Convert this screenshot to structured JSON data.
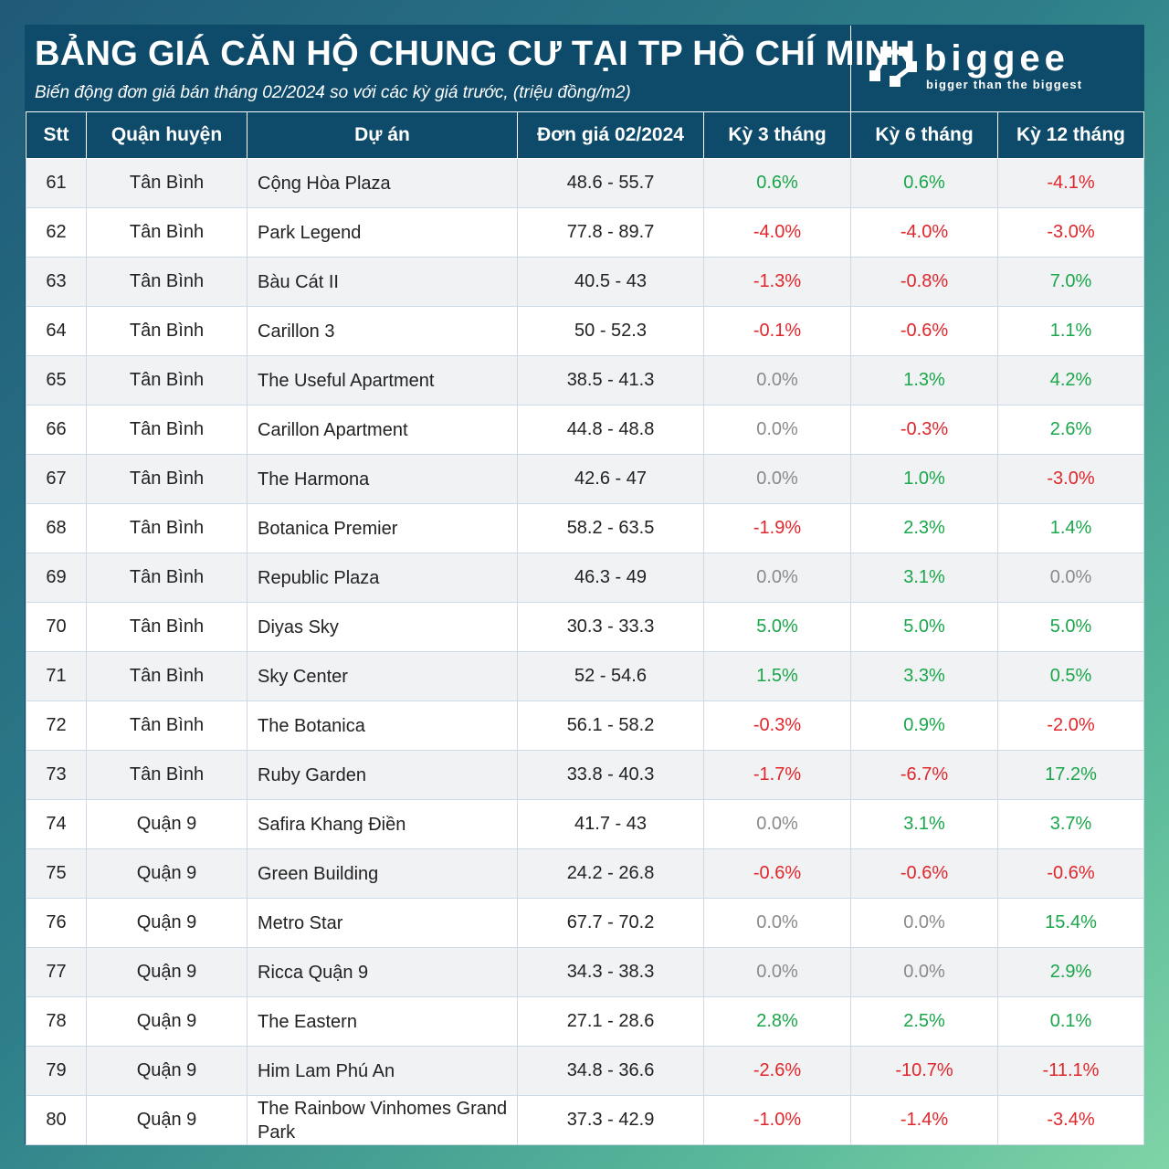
{
  "header": {
    "title": "BẢNG GIÁ CĂN HỘ CHUNG CƯ TẠI TP HỒ CHÍ MINH",
    "subtitle": "Biến động đơn giá bán tháng 02/2024 so với các kỳ giá trước, (triệu đồng/m2)"
  },
  "logo": {
    "word": "biggee",
    "tagline": "bigger than the biggest"
  },
  "colors": {
    "header_bg": "#0e4a6a",
    "positive": "#1aa64a",
    "negative": "#e0262b",
    "zero": "#8a8a8a"
  },
  "table": {
    "columns": [
      "Stt",
      "Quận huyện",
      "Dự án",
      "Đơn giá 02/2024",
      "Kỳ 3 tháng",
      "Kỳ 6 tháng",
      "Kỳ 12 tháng"
    ],
    "rows": [
      {
        "stt": "61",
        "district": "Tân Bình",
        "project": "Cộng Hòa Plaza",
        "price": "48.6 - 55.7",
        "k3": "0.6%",
        "k6": "0.6%",
        "k12": "-4.1%"
      },
      {
        "stt": "62",
        "district": "Tân Bình",
        "project": "Park Legend",
        "price": "77.8 - 89.7",
        "k3": "-4.0%",
        "k6": "-4.0%",
        "k12": "-3.0%"
      },
      {
        "stt": "63",
        "district": "Tân Bình",
        "project": "Bàu Cát II",
        "price": "40.5 - 43",
        "k3": "-1.3%",
        "k6": "-0.8%",
        "k12": "7.0%"
      },
      {
        "stt": "64",
        "district": "Tân Bình",
        "project": "Carillon 3",
        "price": "50 - 52.3",
        "k3": "-0.1%",
        "k6": "-0.6%",
        "k12": "1.1%"
      },
      {
        "stt": "65",
        "district": "Tân Bình",
        "project": "The Useful Apartment",
        "price": "38.5 - 41.3",
        "k3": "0.0%",
        "k6": "1.3%",
        "k12": "4.2%"
      },
      {
        "stt": "66",
        "district": "Tân Bình",
        "project": "Carillon Apartment",
        "price": "44.8 - 48.8",
        "k3": "0.0%",
        "k6": "-0.3%",
        "k12": "2.6%"
      },
      {
        "stt": "67",
        "district": "Tân Bình",
        "project": "The Harmona",
        "price": "42.6 - 47",
        "k3": "0.0%",
        "k6": "1.0%",
        "k12": "-3.0%"
      },
      {
        "stt": "68",
        "district": "Tân Bình",
        "project": "Botanica Premier",
        "price": "58.2 - 63.5",
        "k3": "-1.9%",
        "k6": "2.3%",
        "k12": "1.4%"
      },
      {
        "stt": "69",
        "district": "Tân Bình",
        "project": "Republic Plaza",
        "price": "46.3 - 49",
        "k3": "0.0%",
        "k6": "3.1%",
        "k12": "0.0%"
      },
      {
        "stt": "70",
        "district": "Tân Bình",
        "project": "Diyas Sky",
        "price": "30.3 - 33.3",
        "k3": "5.0%",
        "k6": "5.0%",
        "k12": "5.0%"
      },
      {
        "stt": "71",
        "district": "Tân Bình",
        "project": "Sky Center",
        "price": "52 - 54.6",
        "k3": "1.5%",
        "k6": "3.3%",
        "k12": "0.5%"
      },
      {
        "stt": "72",
        "district": "Tân Bình",
        "project": "The Botanica",
        "price": "56.1 - 58.2",
        "k3": "-0.3%",
        "k6": "0.9%",
        "k12": "-2.0%"
      },
      {
        "stt": "73",
        "district": "Tân Bình",
        "project": "Ruby Garden",
        "price": "33.8 - 40.3",
        "k3": "-1.7%",
        "k6": "-6.7%",
        "k12": "17.2%"
      },
      {
        "stt": "74",
        "district": "Quận 9",
        "project": "Safira Khang Điền",
        "price": "41.7 - 43",
        "k3": "0.0%",
        "k6": "3.1%",
        "k12": "3.7%"
      },
      {
        "stt": "75",
        "district": "Quận 9",
        "project": "Green Building",
        "price": "24.2 - 26.8",
        "k3": "-0.6%",
        "k6": "-0.6%",
        "k12": "-0.6%"
      },
      {
        "stt": "76",
        "district": "Quận 9",
        "project": "Metro Star",
        "price": "67.7 - 70.2",
        "k3": "0.0%",
        "k6": "0.0%",
        "k12": "15.4%"
      },
      {
        "stt": "77",
        "district": "Quận 9",
        "project": "Ricca Quận 9",
        "price": "34.3 - 38.3",
        "k3": "0.0%",
        "k6": "0.0%",
        "k12": "2.9%"
      },
      {
        "stt": "78",
        "district": "Quận 9",
        "project": "The Eastern",
        "price": "27.1 - 28.6",
        "k3": "2.8%",
        "k6": "2.5%",
        "k12": "0.1%"
      },
      {
        "stt": "79",
        "district": "Quận 9",
        "project": "Him Lam Phú An",
        "price": "34.8 - 36.6",
        "k3": "-2.6%",
        "k6": "-10.7%",
        "k12": "-11.1%"
      },
      {
        "stt": "80",
        "district": "Quận 9",
        "project": "The Rainbow Vinhomes Grand Park",
        "price": "37.3 - 42.9",
        "k3": "-1.0%",
        "k6": "-1.4%",
        "k12": "-3.4%"
      }
    ]
  }
}
